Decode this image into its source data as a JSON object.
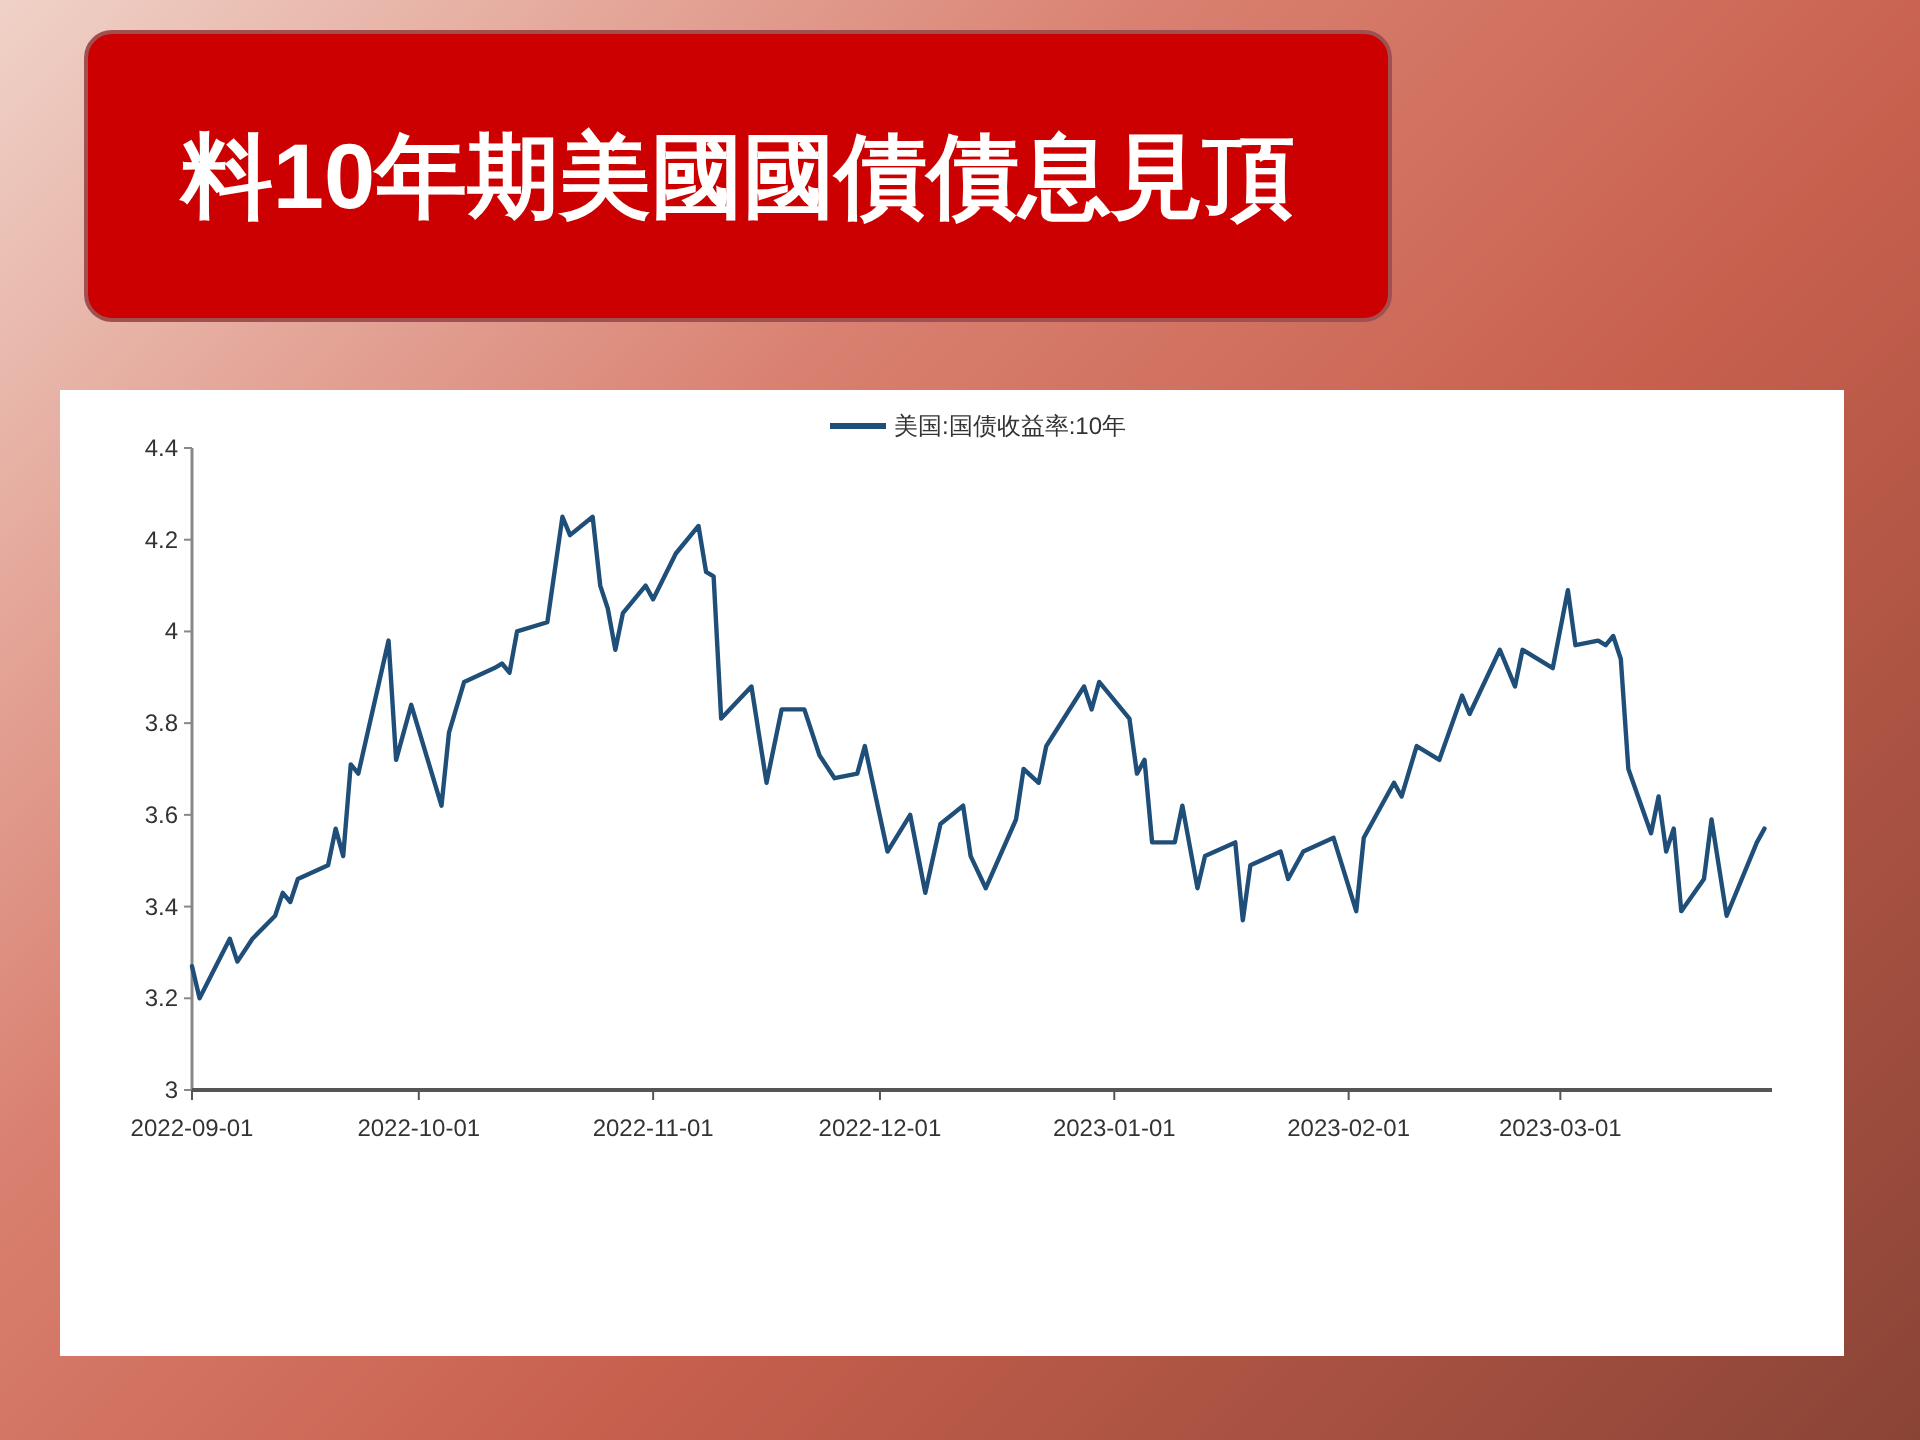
{
  "chart_data": {
    "type": "line",
    "title": "料10年期美國國債債息見頂",
    "legend": "top",
    "x": [
      "2022-09-01",
      "2022-09-02",
      "2022-09-06",
      "2022-09-07",
      "2022-09-09",
      "2022-09-12",
      "2022-09-13",
      "2022-09-14",
      "2022-09-15",
      "2022-09-19",
      "2022-09-20",
      "2022-09-21",
      "2022-09-22",
      "2022-09-23",
      "2022-09-27",
      "2022-09-28",
      "2022-09-30",
      "2022-10-04",
      "2022-10-05",
      "2022-10-07",
      "2022-10-11",
      "2022-10-12",
      "2022-10-13",
      "2022-10-14",
      "2022-10-18",
      "2022-10-20",
      "2022-10-21",
      "2022-10-24",
      "2022-10-25",
      "2022-10-26",
      "2022-10-27",
      "2022-10-28",
      "2022-10-31",
      "2022-11-01",
      "2022-11-04",
      "2022-11-07",
      "2022-11-08",
      "2022-11-09",
      "2022-11-10",
      "2022-11-14",
      "2022-11-16",
      "2022-11-18",
      "2022-11-21",
      "2022-11-23",
      "2022-11-25",
      "2022-11-28",
      "2022-11-29",
      "2022-12-02",
      "2022-12-05",
      "2022-12-07",
      "2022-12-09",
      "2022-12-12",
      "2022-12-13",
      "2022-12-15",
      "2022-12-19",
      "2022-12-20",
      "2022-12-22",
      "2022-12-23",
      "2022-12-28",
      "2022-12-29",
      "2022-12-30",
      "2023-01-03",
      "2023-01-04",
      "2023-01-05",
      "2023-01-06",
      "2023-01-09",
      "2023-01-10",
      "2023-01-12",
      "2023-01-13",
      "2023-01-17",
      "2023-01-18",
      "2023-01-19",
      "2023-01-23",
      "2023-01-24",
      "2023-01-26",
      "2023-01-30",
      "2023-02-02",
      "2023-02-03",
      "2023-02-07",
      "2023-02-08",
      "2023-02-10",
      "2023-02-13",
      "2023-02-16",
      "2023-02-17",
      "2023-02-21",
      "2023-02-23",
      "2023-02-24",
      "2023-02-28",
      "2023-03-02",
      "2023-03-03",
      "2023-03-06",
      "2023-03-07",
      "2023-03-08",
      "2023-03-09",
      "2023-03-10",
      "2023-03-13",
      "2023-03-14",
      "2023-03-15",
      "2023-03-16",
      "2023-03-17",
      "2023-03-20",
      "2023-03-21",
      "2023-03-23",
      "2023-03-27",
      "2023-03-28"
    ],
    "series": [
      {
        "name": "美国:国债收益率:10年",
        "color": "#1f4e79",
        "values": [
          3.27,
          3.2,
          3.33,
          3.28,
          3.33,
          3.38,
          3.43,
          3.41,
          3.46,
          3.49,
          3.57,
          3.51,
          3.71,
          3.69,
          3.98,
          3.72,
          3.84,
          3.62,
          3.78,
          3.89,
          3.92,
          3.93,
          3.91,
          4.0,
          4.02,
          4.25,
          4.21,
          4.25,
          4.1,
          4.05,
          3.96,
          4.04,
          4.1,
          4.07,
          4.17,
          4.23,
          4.13,
          4.12,
          3.81,
          3.88,
          3.67,
          3.83,
          3.83,
          3.73,
          3.68,
          3.69,
          3.75,
          3.52,
          3.6,
          3.43,
          3.58,
          3.62,
          3.51,
          3.44,
          3.59,
          3.7,
          3.67,
          3.75,
          3.88,
          3.83,
          3.89,
          3.81,
          3.69,
          3.72,
          3.54,
          3.54,
          3.62,
          3.44,
          3.51,
          3.54,
          3.37,
          3.49,
          3.52,
          3.46,
          3.52,
          3.55,
          3.39,
          3.55,
          3.67,
          3.64,
          3.75,
          3.72,
          3.86,
          3.82,
          3.96,
          3.88,
          3.96,
          3.92,
          4.09,
          3.97,
          3.98,
          3.97,
          3.99,
          3.94,
          3.7,
          3.56,
          3.64,
          3.52,
          3.57,
          3.39,
          3.46,
          3.59,
          3.38,
          3.54,
          3.57
        ]
      }
    ],
    "xlim": [
      "2022-09-01",
      "2023-03-29"
    ],
    "xticks": [
      {
        "value": "2022-09-01",
        "label": "2022-09-01"
      },
      {
        "value": "2022-10-01",
        "label": "2022-10-01"
      },
      {
        "value": "2022-11-01",
        "label": "2022-11-01"
      },
      {
        "value": "2022-12-01",
        "label": "2022-12-01"
      },
      {
        "value": "2023-01-01",
        "label": "2023-01-01"
      },
      {
        "value": "2023-02-01",
        "label": "2023-02-01"
      },
      {
        "value": "2023-03-01",
        "label": "2023-03-01"
      }
    ],
    "ylim": [
      3,
      4.4
    ],
    "yticks": [
      3,
      3.2,
      3.4,
      3.6,
      3.8,
      4,
      4.2,
      4.4
    ],
    "marker": "none",
    "line_style": "solid",
    "grid": false
  }
}
